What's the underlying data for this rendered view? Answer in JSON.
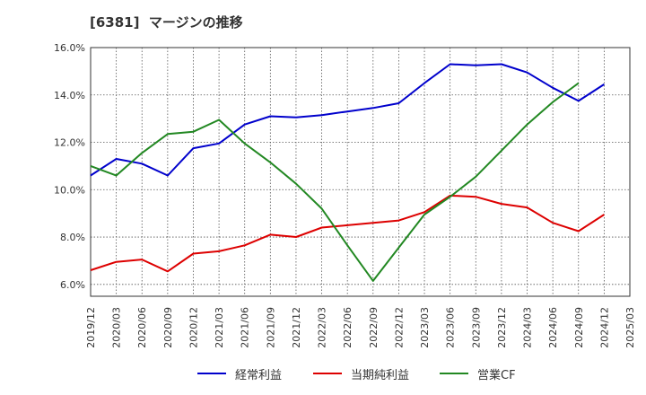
{
  "chart_data": {
    "type": "line",
    "title": "[6381]  マージンの推移",
    "xlabel": "",
    "ylabel": "",
    "ylim": [
      5.5,
      16.0
    ],
    "yticks": [
      6.0,
      8.0,
      10.0,
      12.0,
      14.0,
      16.0
    ],
    "ytick_labels": [
      "6.0%",
      "8.0%",
      "10.0%",
      "12.0%",
      "14.0%",
      "16.0%"
    ],
    "x": [
      "2019/12",
      "2020/03",
      "2020/06",
      "2020/09",
      "2020/12",
      "2021/03",
      "2021/06",
      "2021/09",
      "2021/12",
      "2022/03",
      "2022/06",
      "2022/09",
      "2022/12",
      "2023/03",
      "2023/06",
      "2023/09",
      "2023/12",
      "2024/03",
      "2024/06",
      "2024/09",
      "2024/12",
      "2025/03"
    ],
    "grid": true,
    "legend_position": "bottom",
    "series": [
      {
        "name": "経常利益",
        "color": "#0000cc",
        "values": [
          10.6,
          11.3,
          11.1,
          10.6,
          11.75,
          11.95,
          12.75,
          13.1,
          13.05,
          13.15,
          13.3,
          13.45,
          13.65,
          14.5,
          15.3,
          15.25,
          15.3,
          14.95,
          14.3,
          13.75,
          14.45,
          null
        ]
      },
      {
        "name": "当期純利益",
        "color": "#dd0000",
        "values": [
          6.6,
          6.95,
          7.05,
          6.55,
          7.3,
          7.4,
          7.65,
          8.1,
          8.0,
          8.4,
          8.5,
          8.6,
          8.7,
          9.05,
          9.75,
          9.7,
          9.4,
          9.25,
          8.6,
          8.25,
          8.95,
          null
        ]
      },
      {
        "name": "営業CF",
        "color": "#228822",
        "values": [
          11.0,
          10.6,
          11.55,
          12.35,
          12.45,
          12.95,
          11.95,
          11.15,
          10.25,
          9.2,
          7.65,
          6.15,
          7.55,
          8.95,
          9.7,
          10.55,
          11.65,
          12.75,
          13.7,
          14.5,
          null,
          null
        ]
      }
    ]
  }
}
